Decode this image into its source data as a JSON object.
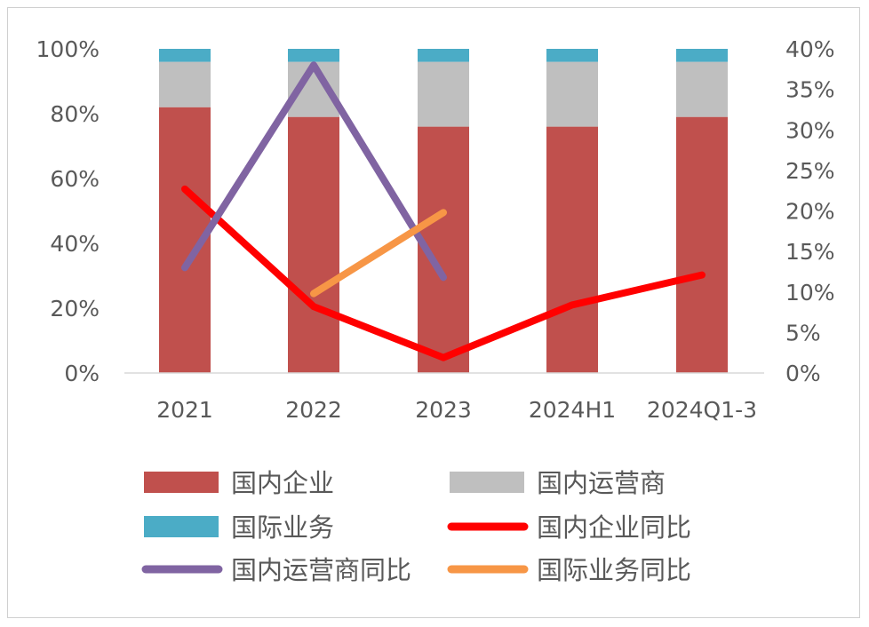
{
  "chart_data": {
    "type": "bar",
    "stacked": true,
    "categories": [
      "2021",
      "2022",
      "2023",
      "2024H1",
      "2024Q1-3"
    ],
    "y_left": {
      "ticks": [
        "0%",
        "20%",
        "40%",
        "60%",
        "80%",
        "100%"
      ],
      "range": [
        0,
        100
      ]
    },
    "y_right": {
      "ticks": [
        "0%",
        "5%",
        "10%",
        "15%",
        "20%",
        "25%",
        "30%",
        "35%",
        "40%"
      ],
      "range": [
        0,
        40
      ]
    },
    "grid": false,
    "legend_position": "bottom",
    "bar_series": [
      {
        "name": "国内企业",
        "color": "#c0504d",
        "values": [
          82,
          79,
          76,
          76,
          79
        ]
      },
      {
        "name": "国内运营商",
        "color": "#bfbfbf",
        "values": [
          14,
          17,
          20,
          20,
          17
        ]
      },
      {
        "name": "国际业务",
        "color": "#4bacc6",
        "values": [
          4,
          4,
          4,
          4,
          4
        ]
      }
    ],
    "line_series": [
      {
        "name": "国内企业同比",
        "color": "#ff0000",
        "axis": "right",
        "values": [
          22.7,
          8.2,
          1.9,
          8.4,
          12.1
        ]
      },
      {
        "name": "国内运营商同比",
        "color": "#8064a2",
        "axis": "right",
        "values": [
          13.0,
          38.0,
          11.8,
          null,
          null
        ]
      },
      {
        "name": "国际业务同比",
        "color": "#f79646",
        "axis": "right",
        "values": [
          null,
          9.8,
          19.8,
          null,
          null
        ]
      }
    ]
  }
}
